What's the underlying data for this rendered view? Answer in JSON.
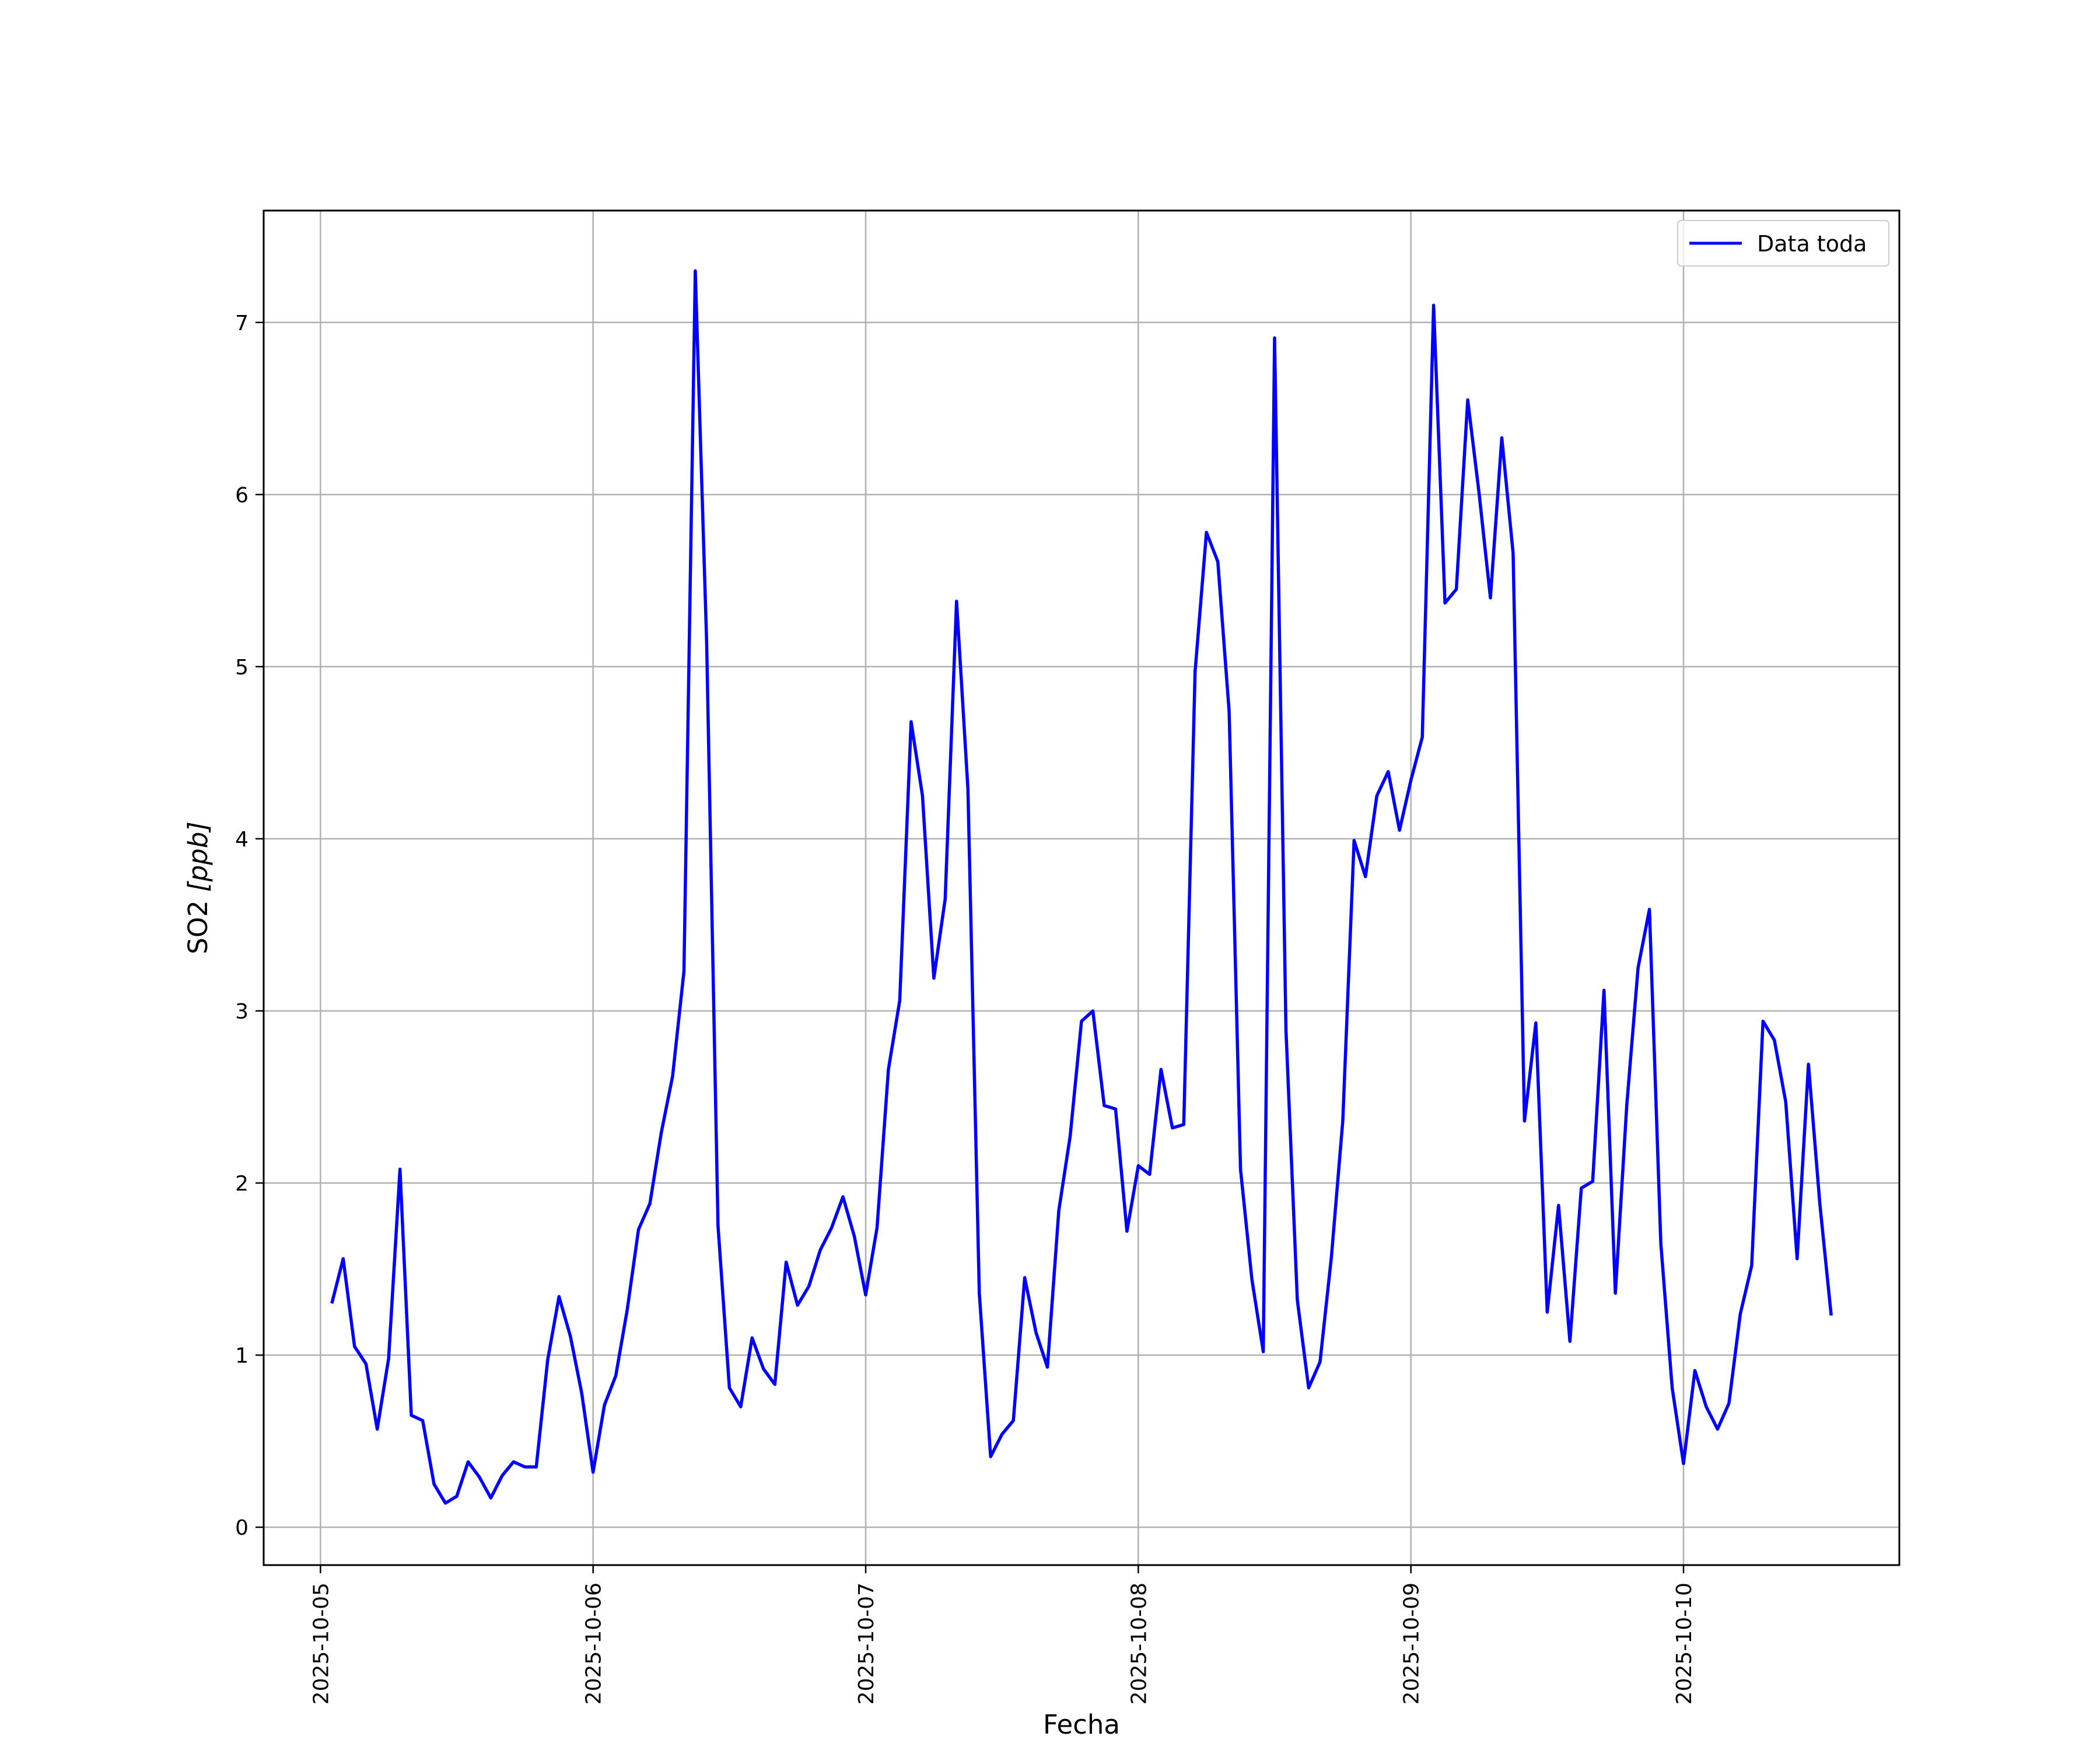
{
  "chart_data": {
    "type": "line",
    "xlabel": "Fecha",
    "ylabel_main": "SO2 ",
    "ylabel_unit": "[ppb]",
    "xlim": [
      "2025-10-04T19:00",
      "2025-10-10T19:00"
    ],
    "ylim": [
      -0.22,
      7.65
    ],
    "x_ticks": [
      "2025-10-05",
      "2025-10-06",
      "2025-10-07",
      "2025-10-08",
      "2025-10-09",
      "2025-10-10"
    ],
    "y_ticks": [
      "0",
      "1",
      "2",
      "3",
      "4",
      "5",
      "6",
      "7"
    ],
    "grid": true,
    "legend_position": "top-right",
    "colors": {
      "series": "#0000ff",
      "grid": "#b0b0b0"
    },
    "series": [
      {
        "name": "Data toda",
        "x": [
          "2025-10-05T01:00",
          "2025-10-05T02:00",
          "2025-10-05T03:00",
          "2025-10-05T04:00",
          "2025-10-05T05:00",
          "2025-10-05T06:00",
          "2025-10-05T07:00",
          "2025-10-05T08:00",
          "2025-10-05T09:00",
          "2025-10-05T10:00",
          "2025-10-05T11:00",
          "2025-10-05T12:00",
          "2025-10-05T13:00",
          "2025-10-05T14:00",
          "2025-10-05T15:00",
          "2025-10-05T16:00",
          "2025-10-05T17:00",
          "2025-10-05T18:00",
          "2025-10-05T19:00",
          "2025-10-05T20:00",
          "2025-10-05T21:00",
          "2025-10-05T22:00",
          "2025-10-05T23:00",
          "2025-10-06T00:00",
          "2025-10-06T01:00",
          "2025-10-06T02:00",
          "2025-10-06T03:00",
          "2025-10-06T04:00",
          "2025-10-06T05:00",
          "2025-10-06T06:00",
          "2025-10-06T07:00",
          "2025-10-06T08:00",
          "2025-10-06T09:00",
          "2025-10-06T10:00",
          "2025-10-06T11:00",
          "2025-10-06T12:00",
          "2025-10-06T13:00",
          "2025-10-06T14:00",
          "2025-10-06T15:00",
          "2025-10-06T16:00",
          "2025-10-06T17:00",
          "2025-10-06T18:00",
          "2025-10-06T19:00",
          "2025-10-06T20:00",
          "2025-10-06T21:00",
          "2025-10-06T22:00",
          "2025-10-06T23:00",
          "2025-10-07T00:00",
          "2025-10-07T01:00",
          "2025-10-07T02:00",
          "2025-10-07T03:00",
          "2025-10-07T04:00",
          "2025-10-07T05:00",
          "2025-10-07T06:00",
          "2025-10-07T07:00",
          "2025-10-07T08:00",
          "2025-10-07T09:00",
          "2025-10-07T10:00",
          "2025-10-07T11:00",
          "2025-10-07T12:00",
          "2025-10-07T13:00",
          "2025-10-07T14:00",
          "2025-10-07T15:00",
          "2025-10-07T16:00",
          "2025-10-07T17:00",
          "2025-10-07T18:00",
          "2025-10-07T19:00",
          "2025-10-07T20:00",
          "2025-10-07T21:00",
          "2025-10-07T22:00",
          "2025-10-07T23:00",
          "2025-10-08T00:00",
          "2025-10-08T01:00",
          "2025-10-08T02:00",
          "2025-10-08T03:00",
          "2025-10-08T04:00",
          "2025-10-08T05:00",
          "2025-10-08T06:00",
          "2025-10-08T07:00",
          "2025-10-08T08:00",
          "2025-10-08T09:00",
          "2025-10-08T10:00",
          "2025-10-08T11:00",
          "2025-10-08T12:00",
          "2025-10-08T13:00",
          "2025-10-08T14:00",
          "2025-10-08T15:00",
          "2025-10-08T16:00",
          "2025-10-08T17:00",
          "2025-10-08T18:00",
          "2025-10-08T19:00",
          "2025-10-08T20:00",
          "2025-10-08T21:00",
          "2025-10-08T22:00",
          "2025-10-08T23:00",
          "2025-10-09T00:00",
          "2025-10-09T01:00",
          "2025-10-09T02:00",
          "2025-10-09T03:00",
          "2025-10-09T04:00",
          "2025-10-09T05:00",
          "2025-10-09T06:00",
          "2025-10-09T07:00",
          "2025-10-09T08:00",
          "2025-10-09T09:00",
          "2025-10-09T10:00",
          "2025-10-09T11:00",
          "2025-10-09T12:00",
          "2025-10-09T13:00",
          "2025-10-09T14:00",
          "2025-10-09T15:00",
          "2025-10-09T16:00",
          "2025-10-09T17:00",
          "2025-10-09T18:00",
          "2025-10-09T19:00",
          "2025-10-09T20:00",
          "2025-10-09T21:00",
          "2025-10-09T22:00",
          "2025-10-09T23:00",
          "2025-10-10T00:00",
          "2025-10-10T01:00",
          "2025-10-10T02:00",
          "2025-10-10T03:00",
          "2025-10-10T04:00",
          "2025-10-10T05:00",
          "2025-10-10T06:00",
          "2025-10-10T07:00",
          "2025-10-10T08:00",
          "2025-10-10T09:00",
          "2025-10-10T10:00",
          "2025-10-10T11:00",
          "2025-10-10T12:00",
          "2025-10-10T13:00"
        ],
        "values": [
          1.3,
          1.56,
          1.05,
          0.95,
          0.57,
          0.98,
          2.08,
          0.65,
          0.62,
          0.25,
          0.14,
          0.18,
          0.38,
          0.29,
          0.17,
          0.3,
          0.38,
          0.35,
          0.35,
          0.97,
          1.34,
          1.11,
          0.78,
          0.32,
          0.71,
          0.88,
          1.26,
          1.73,
          1.88,
          2.29,
          2.62,
          3.23,
          7.3,
          5.14,
          1.75,
          0.81,
          0.7,
          1.1,
          0.92,
          0.83,
          1.54,
          1.29,
          1.4,
          1.61,
          1.74,
          1.92,
          1.69,
          1.35,
          1.74,
          2.66,
          3.06,
          4.68,
          4.25,
          3.19,
          3.65,
          5.38,
          4.29,
          1.36,
          0.41,
          0.54,
          0.62,
          1.45,
          1.13,
          0.93,
          1.84,
          2.27,
          2.94,
          3.0,
          2.45,
          2.43,
          1.72,
          2.1,
          2.05,
          2.66,
          2.32,
          2.34,
          4.97,
          5.78,
          5.61,
          4.74,
          2.08,
          1.44,
          1.02,
          6.91,
          2.89,
          1.32,
          0.81,
          0.96,
          1.57,
          2.36,
          3.99,
          3.78,
          4.25,
          4.39,
          4.05,
          4.34,
          4.59,
          7.1,
          5.37,
          5.45,
          6.55,
          6.01,
          5.4,
          6.33,
          5.66,
          2.36,
          2.93,
          1.25,
          1.87,
          1.08,
          1.97,
          2.01,
          3.12,
          1.36,
          2.45,
          3.25,
          3.59,
          1.65,
          0.81,
          0.37,
          0.91,
          0.7,
          0.57,
          0.72,
          1.24,
          1.52,
          2.94,
          2.83,
          2.47,
          1.56,
          2.69,
          1.88,
          1.23
        ]
      }
    ]
  }
}
